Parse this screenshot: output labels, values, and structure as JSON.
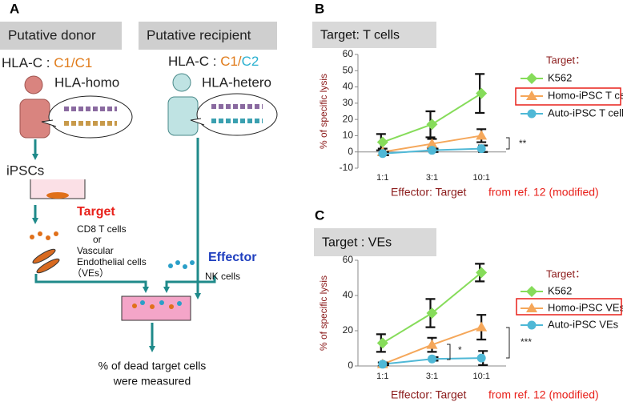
{
  "panels": {
    "a": "A",
    "b": "B",
    "c": "C"
  },
  "diagram": {
    "donor_label": "Putative donor",
    "recipient_label": "Putative recipient",
    "donor_hla_prefix": "HLA-C : ",
    "donor_hla": "C1/C1",
    "recipient_hla_prefix": "HLA-C : ",
    "recipient_hla_1": "C1",
    "recipient_hla_sep": "/",
    "recipient_hla_2": "C2",
    "donor_type": "HLA-homo",
    "recipient_type": "HLA-hetero",
    "ipsc": "iPSCs",
    "target": "Target",
    "target_cells": [
      "CD8 T cells",
      "or",
      "Vascular",
      "Endothelial cells",
      "（VEs）"
    ],
    "effector": "Effector",
    "effector_cells": "NK cells",
    "result": [
      "% of dead target cells",
      "were measured"
    ]
  },
  "chart_data": [
    {
      "type": "line",
      "title": "Target: T cells",
      "y_label": "% of specific lysis",
      "x_label": "Effector: Target",
      "note": "from ref. 12 (modified)",
      "legend_title": "Target：",
      "legend_highlight": 1,
      "categories": [
        "1:1",
        "3:1",
        "10:1"
      ],
      "ylim": [
        -10,
        60
      ],
      "yticks": [
        -10,
        0,
        10,
        20,
        30,
        40,
        50,
        60
      ],
      "annotations": [
        "**"
      ],
      "series": [
        {
          "name": "K562",
          "color": "#86dc5a",
          "marker": "diamond",
          "values": [
            6,
            17,
            36
          ],
          "errors": [
            5,
            8,
            12
          ]
        },
        {
          "name": "Homo-iPSC T cells",
          "color": "#f5a75a",
          "marker": "triangle",
          "values": [
            0,
            5,
            10
          ],
          "errors": [
            2,
            3,
            4
          ]
        },
        {
          "name": "Auto-iPSC T cells",
          "color": "#4fb8d6",
          "marker": "circle",
          "values": [
            -1,
            1,
            2
          ],
          "errors": [
            1,
            1,
            2
          ]
        }
      ]
    },
    {
      "type": "line",
      "title": "Target : VEs",
      "y_label": "% of specific lysis",
      "x_label": "Effector: Target",
      "note": "from ref. 12 (modified)",
      "legend_title": "Target：",
      "legend_highlight": 1,
      "categories": [
        "1:1",
        "3:1",
        "10:1"
      ],
      "ylim": [
        0,
        60
      ],
      "yticks": [
        0,
        20,
        40,
        60
      ],
      "annotations": [
        "*",
        "***"
      ],
      "series": [
        {
          "name": "K562",
          "color": "#86dc5a",
          "marker": "diamond",
          "values": [
            13,
            30,
            53
          ],
          "errors": [
            5,
            8,
            5
          ]
        },
        {
          "name": "Homo-iPSC VEs",
          "color": "#f5a75a",
          "marker": "triangle",
          "values": [
            1,
            12,
            22
          ],
          "errors": [
            1,
            4,
            7
          ]
        },
        {
          "name": "Auto-iPSC VEs",
          "color": "#4fb8d6",
          "marker": "circle",
          "values": [
            1,
            4,
            4.5
          ],
          "errors": [
            0.5,
            1,
            4
          ]
        }
      ]
    }
  ]
}
